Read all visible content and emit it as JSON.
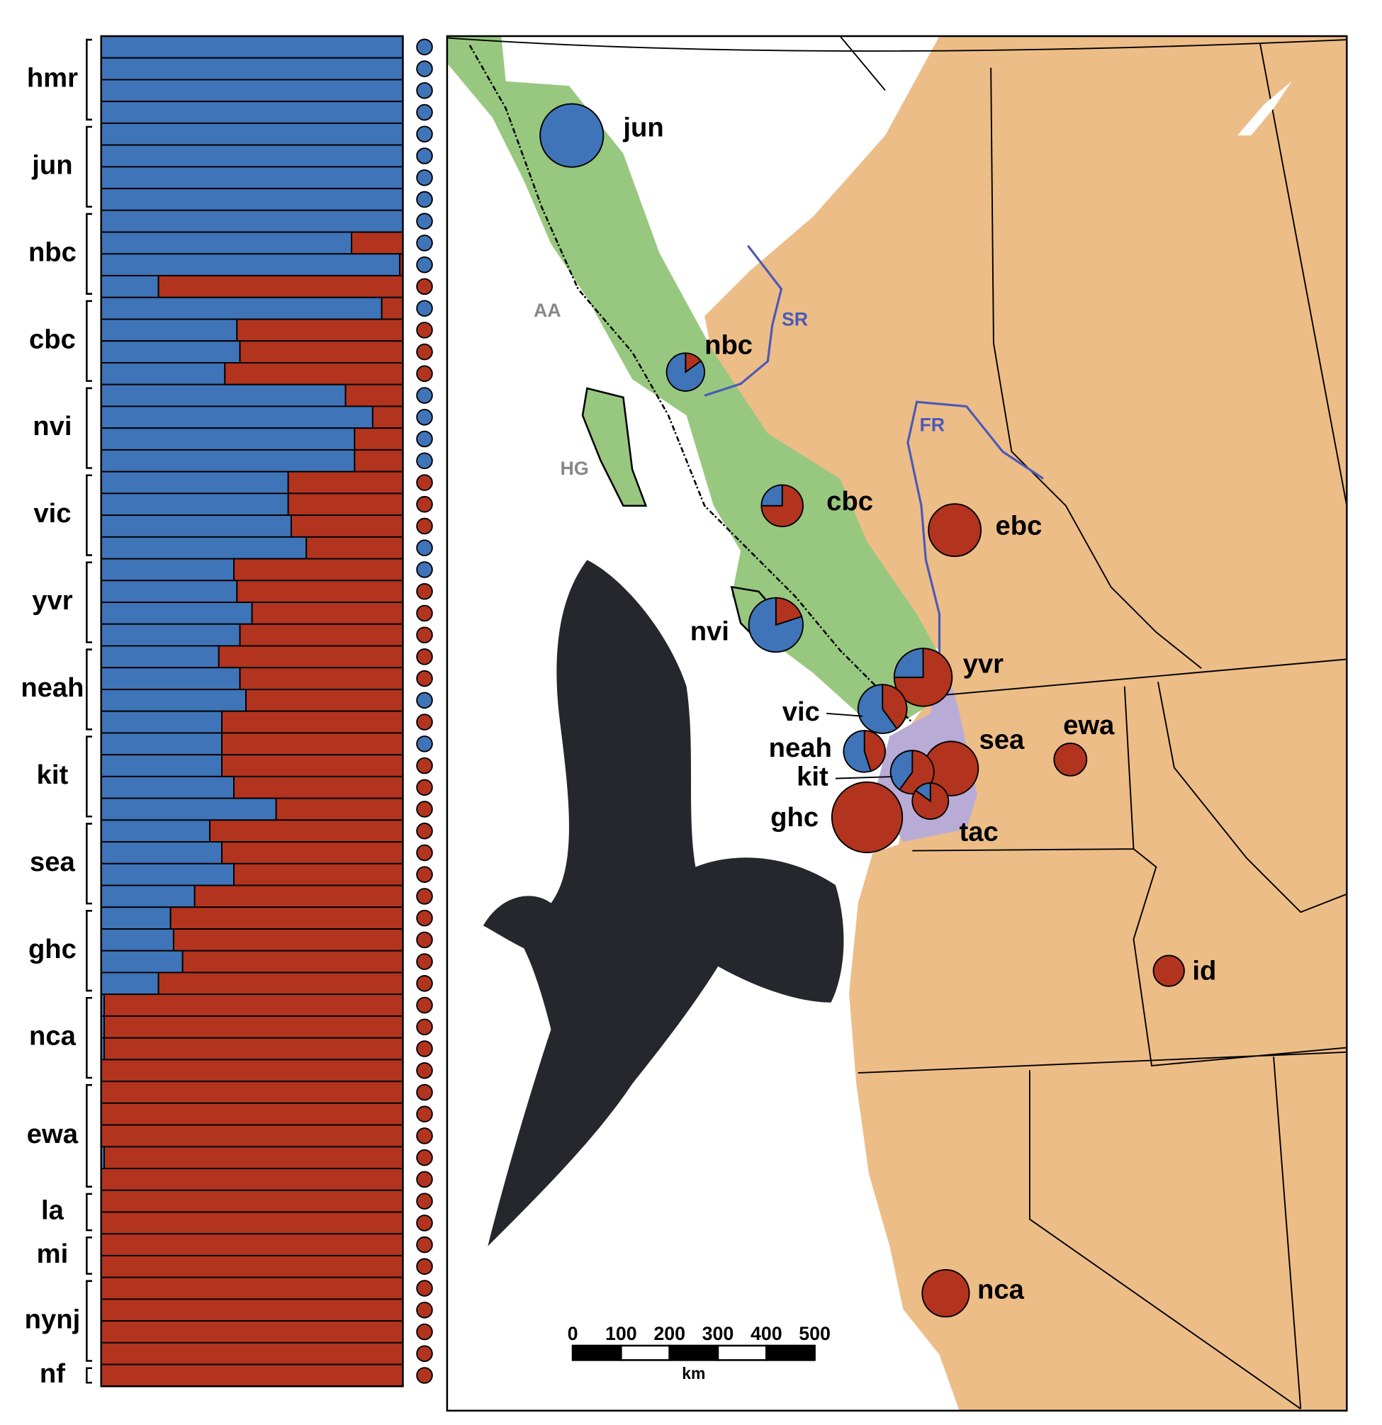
{
  "chart_data": [
    {
      "type": "bar",
      "orientation": "horizontal",
      "stacked": true,
      "categories": [
        "hmr",
        "hmr",
        "hmr",
        "hmr",
        "jun",
        "jun",
        "jun",
        "jun",
        "nbc",
        "nbc",
        "nbc",
        "nbc",
        "cbc",
        "cbc",
        "cbc",
        "cbc",
        "nvi",
        "nvi",
        "nvi",
        "nvi",
        "vic",
        "vic",
        "vic",
        "vic",
        "yvr",
        "yvr",
        "yvr",
        "yvr",
        "neah",
        "neah",
        "neah",
        "neah",
        "kit",
        "kit",
        "kit",
        "kit",
        "sea",
        "sea",
        "sea",
        "sea",
        "ghc",
        "ghc",
        "ghc",
        "ghc",
        "nca",
        "nca",
        "nca",
        "nca",
        "ewa",
        "ewa",
        "ewa",
        "ewa",
        "ewa",
        "la",
        "la",
        "mi",
        "mi",
        "nynj",
        "nynj",
        "nynj",
        "nynj",
        "nf"
      ],
      "series": [
        {
          "color": "#3f74b8",
          "values": [
            1,
            1,
            1,
            1,
            1,
            1,
            1,
            1,
            1,
            0.83,
            0.99,
            0.19,
            0.93,
            0.45,
            0.46,
            0.41,
            0.81,
            0.9,
            0.84,
            0.84,
            0.62,
            0.62,
            0.63,
            0.68,
            0.44,
            0.45,
            0.5,
            0.46,
            0.39,
            0.46,
            0.48,
            0.4,
            0.4,
            0.4,
            0.44,
            0.58,
            0.36,
            0.4,
            0.44,
            0.31,
            0.23,
            0.24,
            0.27,
            0.19,
            0.01,
            0.01,
            0.01,
            0,
            0,
            0,
            0,
            0.01,
            0,
            0,
            0,
            0,
            0,
            0,
            0,
            0,
            0,
            0
          ]
        },
        {
          "color": "#b2341f",
          "values": [
            0,
            0,
            0,
            0,
            0,
            0,
            0,
            0,
            0,
            0.17,
            0.01,
            0.81,
            0.07,
            0.55,
            0.54,
            0.59,
            0.19,
            0.1,
            0.16,
            0.16,
            0.38,
            0.38,
            0.37,
            0.32,
            0.56,
            0.55,
            0.5,
            0.54,
            0.61,
            0.54,
            0.52,
            0.6,
            0.6,
            0.6,
            0.56,
            0.42,
            0.64,
            0.6,
            0.56,
            0.69,
            0.77,
            0.76,
            0.73,
            0.81,
            0.99,
            0.99,
            0.99,
            1,
            1,
            1,
            1,
            0.99,
            1,
            1,
            1,
            1,
            1,
            1,
            1,
            1,
            1,
            1
          ]
        }
      ],
      "xlim": [
        0,
        1
      ],
      "individual_colors": [
        "#3f74b8",
        "#3f74b8",
        "#3f74b8",
        "#3f74b8",
        "#3f74b8",
        "#3f74b8",
        "#3f74b8",
        "#3f74b8",
        "#3f74b8",
        "#3f74b8",
        "#3f74b8",
        "#b2341f",
        "#3f74b8",
        "#b2341f",
        "#b2341f",
        "#b2341f",
        "#3f74b8",
        "#3f74b8",
        "#3f74b8",
        "#3f74b8",
        "#b2341f",
        "#b2341f",
        "#b2341f",
        "#3f74b8",
        "#3f74b8",
        "#b2341f",
        "#b2341f",
        "#b2341f",
        "#b2341f",
        "#b2341f",
        "#3f74b8",
        "#b2341f",
        "#3f74b8",
        "#b2341f",
        "#b2341f",
        "#b2341f",
        "#b2341f",
        "#b2341f",
        "#b2341f",
        "#b2341f",
        "#b2341f",
        "#b2341f",
        "#b2341f",
        "#b2341f",
        "#b2341f",
        "#b2341f",
        "#b2341f",
        "#b2341f",
        "#b2341f",
        "#b2341f",
        "#b2341f",
        "#b2341f",
        "#b2341f",
        "#b2341f",
        "#b2341f",
        "#b2341f",
        "#b2341f",
        "#b2341f",
        "#b2341f",
        "#b2341f",
        "#b2341f",
        "#b2341f"
      ]
    },
    {
      "type": "pie",
      "colors": [
        "#3f74b8",
        "#b2341f"
      ],
      "populations": [
        {
          "label": "jun",
          "values": [
            1,
            0
          ]
        },
        {
          "label": "nbc",
          "values": [
            0.85,
            0.15
          ]
        },
        {
          "label": "cbc",
          "values": [
            0.25,
            0.75
          ]
        },
        {
          "label": "ebc",
          "values": [
            0,
            1
          ]
        },
        {
          "label": "nvi",
          "values": [
            0.8,
            0.2
          ]
        },
        {
          "label": "yvr",
          "values": [
            0.25,
            0.75
          ]
        },
        {
          "label": "vic",
          "values": [
            0.6,
            0.4
          ]
        },
        {
          "label": "neah",
          "values": [
            0.55,
            0.45
          ]
        },
        {
          "label": "sea",
          "values": [
            0,
            1
          ]
        },
        {
          "label": "kit",
          "values": [
            0.4,
            0.6
          ]
        },
        {
          "label": "tac",
          "values": [
            0.15,
            0.85
          ]
        },
        {
          "label": "ghc",
          "values": [
            0,
            1
          ]
        },
        {
          "label": "ewa",
          "values": [
            0,
            1
          ]
        },
        {
          "label": "id",
          "values": [
            0,
            1
          ]
        },
        {
          "label": "nca",
          "values": [
            0,
            1
          ]
        }
      ],
      "regions": [
        "AA",
        "HG"
      ],
      "rivers": [
        "SR",
        "FR"
      ],
      "scale_bar": {
        "ticks": [
          0,
          100,
          200,
          300,
          400,
          500
        ],
        "unit": "km"
      }
    }
  ]
}
